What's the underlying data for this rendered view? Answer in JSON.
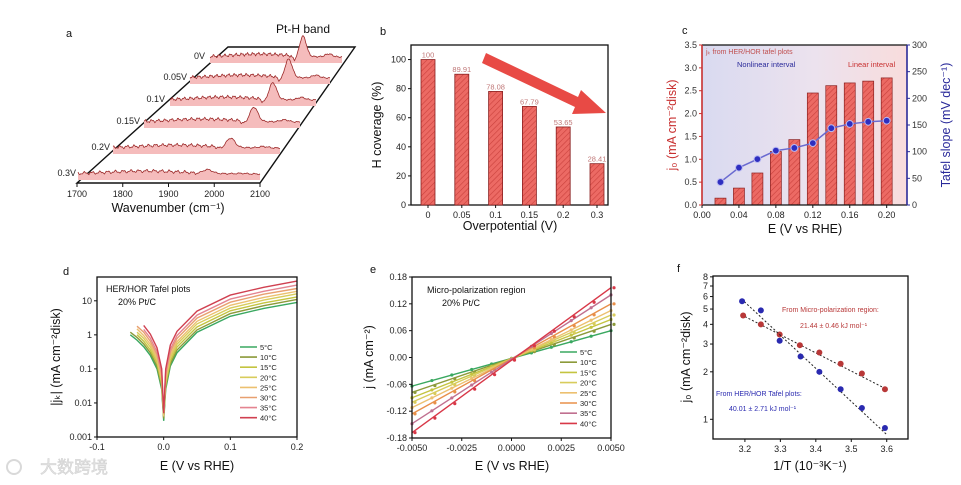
{
  "watermark": {
    "text": "大数跨境"
  },
  "chart_data": [
    {
      "panel": "a",
      "type": "line",
      "title": "Pt-H band",
      "xlabel": "Wavenumber (cm⁻¹)",
      "xticks": [
        1700,
        1800,
        1900,
        2000,
        2100
      ],
      "xlim": [
        1700,
        2100
      ],
      "series": [
        {
          "name": "0V",
          "peak_wavenumber": 1982,
          "peak_intensity": 1.0
        },
        {
          "name": "0.05V",
          "peak_wavenumber": 1982,
          "peak_intensity": 0.9
        },
        {
          "name": "0.1V",
          "peak_wavenumber": 1982,
          "peak_intensity": 0.82
        },
        {
          "name": "0.15V",
          "peak_wavenumber": 1982,
          "peak_intensity": 0.7
        },
        {
          "name": "0.2V",
          "peak_wavenumber": 1982,
          "peak_intensity": 0.45
        },
        {
          "name": "0.3V",
          "peak_wavenumber": 1985,
          "peak_intensity": 0.18
        }
      ]
    },
    {
      "panel": "b",
      "type": "bar",
      "xlabel": "Overpotential (V)",
      "ylabel": "H coverage (%)",
      "categories": [
        "0",
        "0.05",
        "0.1",
        "0.15",
        "0.2",
        "0.3"
      ],
      "values": [
        100,
        89.91,
        78.08,
        67.79,
        53.65,
        28.41
      ],
      "data_labels": [
        "100",
        "89.91",
        "78.08",
        "67.79",
        "53.65",
        "28.41"
      ],
      "yticks": [
        0,
        20,
        40,
        60,
        80,
        100
      ],
      "ylim": [
        0,
        110
      ],
      "colors": {
        "bar": "#e85a5a",
        "arrow": "#e84a45",
        "label": "#c07878"
      }
    },
    {
      "panel": "c",
      "type": "bar",
      "xlabel": "E (V vs RHE)",
      "ylabel": "j₀ (mA cm⁻²disk)",
      "ylabel_right": "Tafel slope (mV dec⁻¹)",
      "annotation": "jₖ from HER/HOR tafel plots",
      "interval_left": "Nonlinear interval",
      "interval_right": "Linear interval",
      "x": [
        0.02,
        0.04,
        0.06,
        0.08,
        0.1,
        0.12,
        0.14,
        0.16,
        0.18,
        0.2
      ],
      "series": [
        {
          "name": "j0",
          "axis": "left",
          "type": "bar",
          "values": [
            0.15,
            0.37,
            0.7,
            1.17,
            1.43,
            2.45,
            2.61,
            2.67,
            2.71,
            2.78
          ]
        },
        {
          "name": "Tafel slope",
          "axis": "right",
          "type": "line",
          "values": [
            43,
            70,
            86,
            102,
            107,
            116,
            144,
            152,
            156,
            158
          ]
        }
      ],
      "xticks": [
        "0.00",
        "0.04",
        "0.08",
        "0.12",
        "0.16",
        "0.20"
      ],
      "yticks_left": [
        "0.0",
        "0.5",
        "1.0",
        "1.5",
        "2.0",
        "2.5",
        "3.0",
        "3.5"
      ],
      "yticks_right": [
        "0",
        "50",
        "100",
        "150",
        "200",
        "250",
        "300"
      ],
      "xlim": [
        0,
        0.222
      ],
      "ylim_left": [
        0,
        3.5
      ],
      "ylim_right": [
        0,
        300
      ],
      "colors": {
        "left": "#c83030",
        "right": "#2a2a9a",
        "marker": "#2e2ec0"
      }
    },
    {
      "panel": "d",
      "type": "line",
      "title": "HER/HOR Tafel plots",
      "subtitle": "20% Pt/C",
      "xlabel": "E (V vs RHE)",
      "ylabel": "|jₖ| (mA cm⁻²disk)",
      "yscale": "log",
      "xlim": [
        -0.1,
        0.2
      ],
      "ylim": [
        0.001,
        50
      ],
      "xticks": [
        "-0.1",
        "0.0",
        "0.1",
        "0.2"
      ],
      "yticks": [
        "0.001",
        "0.01",
        "0.1",
        "1",
        "10"
      ],
      "legend": "center-right",
      "x": [
        -0.05,
        -0.04,
        -0.03,
        -0.02,
        -0.01,
        -0.003,
        0,
        0.003,
        0.01,
        0.02,
        0.05,
        0.1,
        0.15,
        0.2
      ],
      "series": [
        {
          "name": "5°C",
          "color": "#3aa860",
          "values": [
            1.0,
            0.7,
            0.45,
            0.25,
            0.1,
            0.025,
            0.003,
            0.025,
            0.12,
            0.3,
            1.2,
            3.5,
            6,
            9
          ]
        },
        {
          "name": "10°C",
          "color": "#8c9a3a",
          "values": [
            1.2,
            0.84,
            0.54,
            0.3,
            0.12,
            0.03,
            0.0035,
            0.03,
            0.14,
            0.36,
            1.4,
            4.2,
            7.2,
            11
          ]
        },
        {
          "name": "15°C",
          "color": "#c4c440",
          "values": [
            null,
            1.0,
            0.65,
            0.36,
            0.15,
            0.036,
            0.004,
            0.036,
            0.17,
            0.44,
            1.7,
            5.1,
            8.7,
            13
          ]
        },
        {
          "name": "20°C",
          "color": "#d8cc5c",
          "values": [
            null,
            1.2,
            0.79,
            0.44,
            0.18,
            0.044,
            0.004,
            0.044,
            0.21,
            0.53,
            2.1,
            6.1,
            10.5,
            16
          ]
        },
        {
          "name": "25°C",
          "color": "#ecc070",
          "values": [
            null,
            1.5,
            0.95,
            0.53,
            0.21,
            0.053,
            0.004,
            0.053,
            0.25,
            0.63,
            2.5,
            7.4,
            12.6,
            19
          ]
        },
        {
          "name": "30°C",
          "color": "#e8a070",
          "values": [
            null,
            1.8,
            1.2,
            0.65,
            0.26,
            0.065,
            0.005,
            0.065,
            0.31,
            0.78,
            3.1,
            9.1,
            15.6,
            23
          ]
        },
        {
          "name": "35°C",
          "color": "#e48490",
          "values": [
            null,
            null,
            1.45,
            0.8,
            0.32,
            0.08,
            0.005,
            0.08,
            0.38,
            0.96,
            3.8,
            11.2,
            19,
            29
          ]
        },
        {
          "name": "40°C",
          "color": "#d04050",
          "values": [
            null,
            null,
            1.9,
            1.05,
            0.42,
            0.1,
            0.005,
            0.1,
            0.5,
            1.26,
            5,
            14.7,
            25,
            38
          ]
        }
      ]
    },
    {
      "panel": "e",
      "type": "line",
      "title": "Micro-polarization region",
      "subtitle": "20% Pt/C",
      "xlabel": "E (V vs RHE)",
      "ylabel": "j (mA cm⁻²)",
      "xlim": [
        -0.005,
        0.005
      ],
      "ylim": [
        -0.18,
        0.18
      ],
      "xticks": [
        "-0.0050",
        "-0.0025",
        "0.0000",
        "0.0025",
        "0.0050"
      ],
      "yticks": [
        "-0.18",
        "-0.12",
        "-0.06",
        "0.00",
        "0.06",
        "0.12",
        "0.18"
      ],
      "legend": "center-right",
      "x": [
        -0.005,
        0.005
      ],
      "series": [
        {
          "name": "5°C",
          "color": "#3aa860",
          "values": [
            -0.064,
            0.06
          ]
        },
        {
          "name": "10°C",
          "color": "#8c9a3a",
          "values": [
            -0.078,
            0.074
          ]
        },
        {
          "name": "15°C",
          "color": "#c4c440",
          "values": [
            -0.09,
            0.085
          ]
        },
        {
          "name": "20°C",
          "color": "#d8cc5c",
          "values": [
            -0.1,
            0.095
          ]
        },
        {
          "name": "25°C",
          "color": "#ecc070",
          "values": [
            -0.112,
            0.105
          ]
        },
        {
          "name": "30°C",
          "color": "#e8904a",
          "values": [
            -0.126,
            0.12
          ]
        },
        {
          "name": "35°C",
          "color": "#c07090",
          "values": [
            -0.148,
            0.14
          ]
        },
        {
          "name": "40°C",
          "color": "#d83848",
          "values": [
            -0.168,
            0.156
          ]
        }
      ]
    },
    {
      "panel": "f",
      "type": "scatter",
      "xlabel": "1/T (10⁻³K⁻¹)",
      "ylabel": "j₀ (mA cm⁻²disk)",
      "yscale": "log",
      "xlim": [
        3.11,
        3.66
      ],
      "ylim": [
        0.75,
        8.1
      ],
      "xticks": [
        "3.2",
        "3.3",
        "3.4",
        "3.5",
        "3.6"
      ],
      "yticks": [
        "1",
        "2",
        "3",
        "4",
        "5",
        "6",
        "7",
        "8"
      ],
      "series": [
        {
          "name": "From Micro-polarization region:",
          "value_label": "21.44 ± 0.46 kJ mol⁻¹",
          "color": "#b83838",
          "x": [
            3.195,
            3.245,
            3.298,
            3.355,
            3.41,
            3.47,
            3.53,
            3.595
          ],
          "y": [
            4.55,
            4.0,
            3.45,
            2.95,
            2.65,
            2.25,
            1.95,
            1.55
          ],
          "fit": {
            "x": [
              3.19,
              3.6
            ],
            "y": [
              4.6,
              1.55
            ]
          }
        },
        {
          "name": "From HER/HOR Tafel plots:",
          "value_label": "40.01 ± 2.71 kJ mol⁻¹",
          "color": "#2a2ab0",
          "x": [
            3.192,
            3.245,
            3.298,
            3.357,
            3.41,
            3.47,
            3.53,
            3.595
          ],
          "y": [
            5.6,
            4.9,
            3.15,
            2.5,
            2.0,
            1.55,
            1.18,
            0.88
          ],
          "fit": {
            "x": [
              3.19,
              3.6
            ],
            "y": [
              5.8,
              0.8
            ]
          }
        }
      ]
    }
  ]
}
